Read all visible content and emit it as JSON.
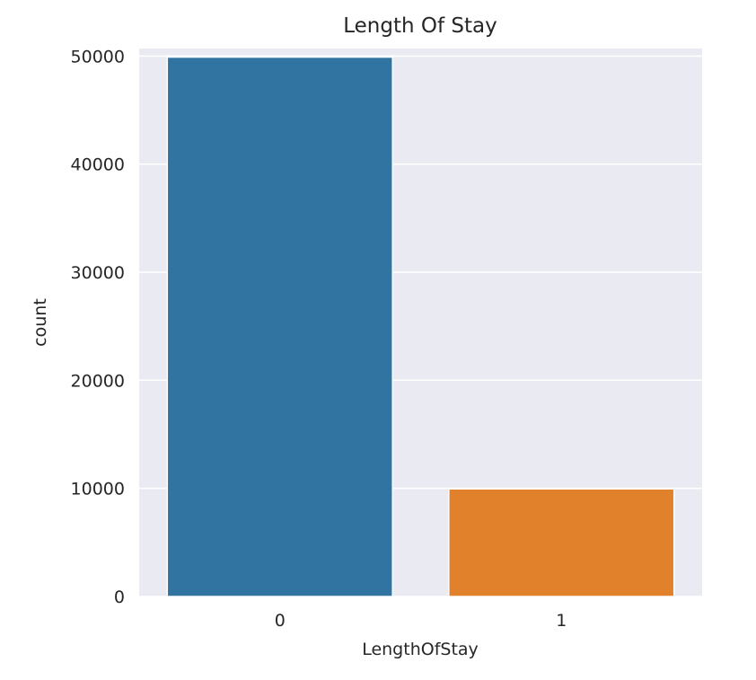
{
  "chart_data": {
    "type": "bar",
    "title": "Length Of Stay",
    "xlabel": "LengthOfStay",
    "ylabel": "count",
    "categories": [
      "0",
      "1"
    ],
    "values": [
      49900,
      9950
    ],
    "colors": [
      "#3274a1",
      "#e1812c"
    ],
    "ylim": [
      0,
      50700
    ],
    "yticks": [
      0,
      10000,
      20000,
      30000,
      40000,
      50000
    ],
    "ytick_labels": [
      "0",
      "10000",
      "20000",
      "30000",
      "40000",
      "50000"
    ],
    "grid": true
  }
}
